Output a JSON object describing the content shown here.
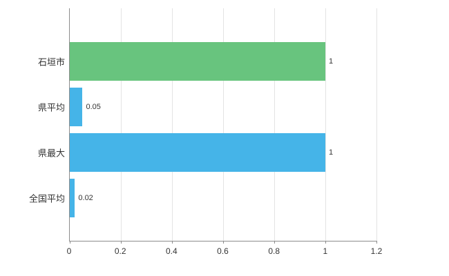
{
  "chart_data": {
    "type": "bar",
    "orientation": "horizontal",
    "title": "",
    "xlabel": "",
    "ylabel": "",
    "categories": [
      "石垣市",
      "県平均",
      "県最大",
      "全国平均"
    ],
    "values": [
      1,
      0.05,
      1,
      0.02
    ],
    "value_labels": [
      "1",
      "0.05",
      "1",
      "0.02"
    ],
    "bar_colors": [
      "#68c47e",
      "#45b4e8",
      "#45b4e8",
      "#45b4e8"
    ],
    "xlim": [
      0,
      1.2
    ],
    "x_ticks": [
      0,
      0.2,
      0.4,
      0.6,
      0.8,
      1,
      1.2
    ],
    "x_tick_labels": [
      "0",
      "0.2",
      "0.4",
      "0.6",
      "0.8",
      "1",
      "1.2"
    ],
    "grid": true,
    "legend": false
  },
  "colors": {
    "green": "#68c47e",
    "blue": "#45b4e8",
    "grid": "#e3e3e3",
    "axis": "#8c8c8c",
    "text": "#333333",
    "background": "#ffffff"
  }
}
